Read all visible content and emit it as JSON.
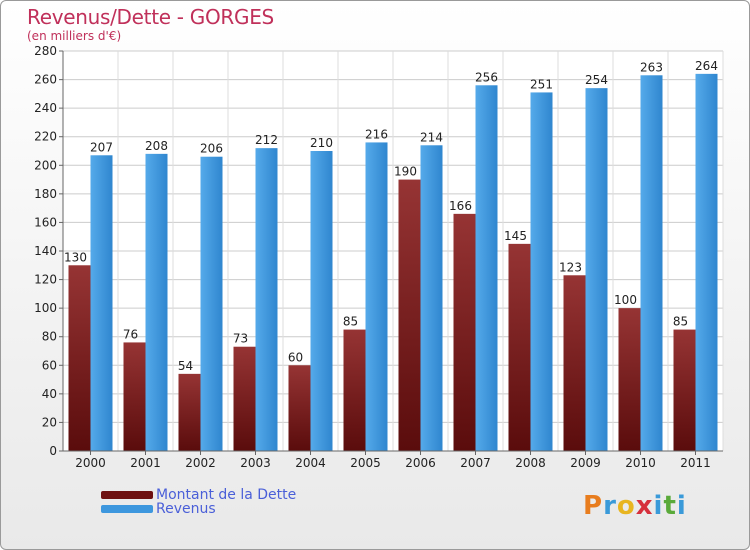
{
  "title": "Revenus/Dette - GORGES",
  "subtitle": "(en milliers d'€)",
  "logo_text": "Proxiti",
  "colors": {
    "dette": "#7a1f1f",
    "revenus": "#3d97de",
    "title": "#c0305a",
    "legend_text": "#4a5fd8"
  },
  "chart_data": {
    "type": "bar",
    "title": "Revenus/Dette - GORGES",
    "subtitle": "(en milliers d'€)",
    "categories": [
      "2000",
      "2001",
      "2002",
      "2003",
      "2004",
      "2005",
      "2006",
      "2007",
      "2008",
      "2009",
      "2010",
      "2011"
    ],
    "series": [
      {
        "name": "Montant de la Dette",
        "values": [
          130,
          76,
          54,
          73,
          60,
          85,
          190,
          166,
          145,
          123,
          100,
          85
        ]
      },
      {
        "name": "Revenus",
        "values": [
          207,
          208,
          206,
          212,
          210,
          216,
          214,
          256,
          251,
          254,
          263,
          264
        ]
      }
    ],
    "ylim": [
      0,
      280
    ],
    "yticks": [
      0,
      20,
      40,
      60,
      80,
      100,
      120,
      140,
      160,
      180,
      200,
      220,
      240,
      260,
      280
    ],
    "grid": true,
    "legend": "bottom-left"
  }
}
